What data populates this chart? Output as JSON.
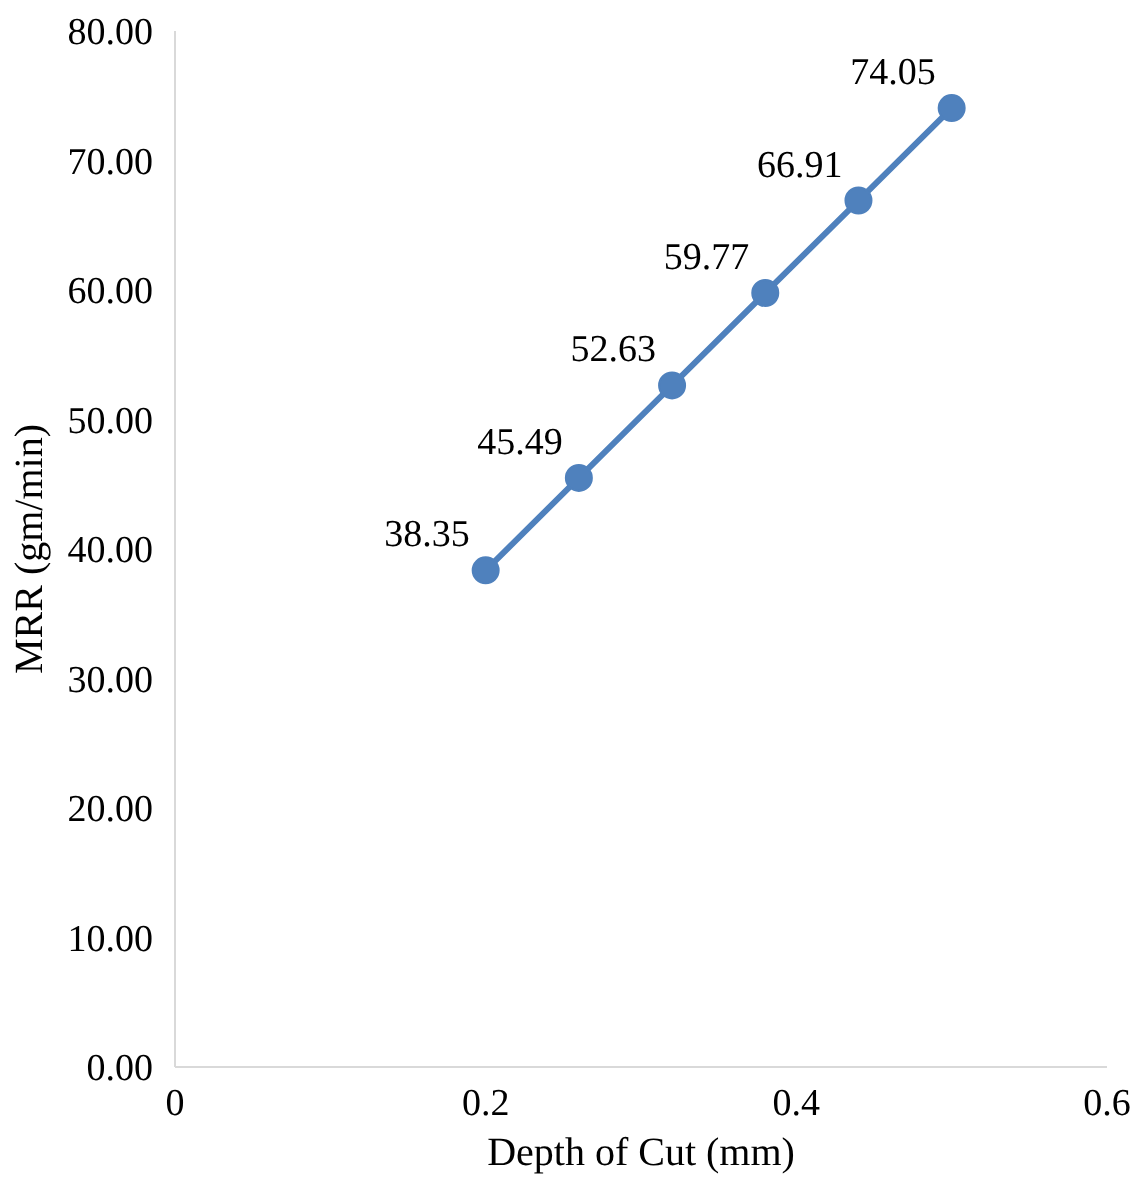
{
  "chart_data": {
    "type": "line",
    "xlabel": "Depth of Cut (mm)",
    "ylabel": "MRR (gm/min)",
    "x": [
      0.2,
      0.26,
      0.32,
      0.38,
      0.44,
      0.5
    ],
    "series": [
      {
        "color": "#4f81bd",
        "values": [
          38.35,
          45.49,
          52.63,
          59.77,
          66.91,
          74.05
        ]
      }
    ],
    "xlim": [
      0,
      0.6
    ],
    "xticks": [
      0,
      0.2,
      0.4,
      0.6
    ],
    "ylim": [
      0,
      80
    ],
    "yticks": [
      {
        "value": 0,
        "label": "0.00"
      },
      {
        "value": 10,
        "label": "10.00"
      },
      {
        "value": 20,
        "label": "20.00"
      },
      {
        "value": 30,
        "label": "30.00"
      },
      {
        "value": 40,
        "label": "40.00"
      },
      {
        "value": 50,
        "label": "50.00"
      },
      {
        "value": 60,
        "label": "60.00"
      },
      {
        "value": 70,
        "label": "70.00"
      },
      {
        "value": 80,
        "label": "80.00"
      }
    ],
    "grid": false,
    "marker": "circle",
    "line_style": "solid",
    "data_labels": true
  }
}
